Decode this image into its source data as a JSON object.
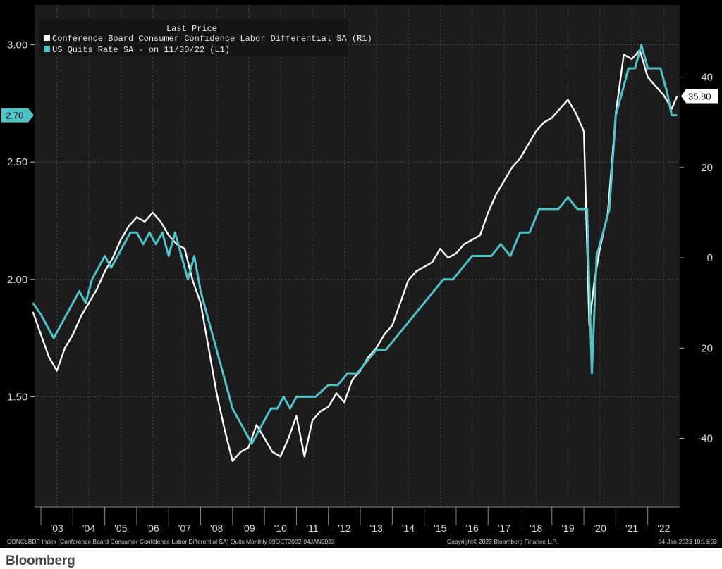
{
  "brand": "Bloomberg",
  "footer": {
    "left": "CONCLBDF Index (Conference Board Consumer Confidence Labor Differential SA) Quits  Monthly 09OCT2002-04JAN2023",
    "center": "Copyright© 2023 Bloomberg Finance L.P.",
    "right": "04-Jan-2023 10:16:03"
  },
  "colors": {
    "background": "#000000",
    "plot_area": "#1c1c1c",
    "conference_board": "#ffffff",
    "quits": "#4fc3c8"
  },
  "chart_data": {
    "type": "line",
    "legend": {
      "title": "Last Price",
      "entries": [
        "Conference Board Consumer Confidence Labor Differential SA  (R1)",
        "US Quits Rate SA -  on 11/30/22  (L1)"
      ],
      "placement": "top-left"
    },
    "x_tick_labels": [
      "'03",
      "'04",
      "'05",
      "'06",
      "'07",
      "'08",
      "'09",
      "'10",
      "'11",
      "'12",
      "'13",
      "'14",
      "'15",
      "'16",
      "'17",
      "'18",
      "'19",
      "'20",
      "'21",
      "'22"
    ],
    "x_range": [
      2002.8,
      2023.0
    ],
    "left_axis": {
      "ticks": [
        1.5,
        2.0,
        2.5,
        3.0
      ],
      "tick_labels": [
        "1.50",
        "2.00",
        "2.50",
        "3.00"
      ],
      "range": [
        1.03,
        3.17
      ]
    },
    "right_axis": {
      "ticks": [
        -40,
        -20,
        0,
        20,
        40
      ],
      "tick_labels": [
        "-40",
        "-20",
        "0",
        "20",
        "40"
      ],
      "range": [
        -55.2,
        56.0
      ]
    },
    "last_value_tags": [
      {
        "series": "quits",
        "text": "2.70",
        "value": 2.7
      },
      {
        "series": "conference_board",
        "text": "35.80",
        "value": 35.8
      }
    ],
    "series": [
      {
        "name": "Conference Board Consumer Confidence Labor Differential SA",
        "axis": "right",
        "x": [
          2002.75,
          2003.0,
          2003.25,
          2003.5,
          2003.75,
          2004.0,
          2004.25,
          2004.5,
          2004.75,
          2005.0,
          2005.25,
          2005.5,
          2005.75,
          2006.0,
          2006.25,
          2006.5,
          2006.75,
          2007.0,
          2007.25,
          2007.5,
          2007.75,
          2008.0,
          2008.25,
          2008.5,
          2008.75,
          2009.0,
          2009.25,
          2009.5,
          2009.75,
          2010.0,
          2010.25,
          2010.5,
          2010.75,
          2011.0,
          2011.25,
          2011.5,
          2011.75,
          2012.0,
          2012.25,
          2012.5,
          2012.75,
          2013.0,
          2013.25,
          2013.5,
          2013.75,
          2014.0,
          2014.25,
          2014.5,
          2014.75,
          2015.0,
          2015.25,
          2015.5,
          2015.75,
          2016.0,
          2016.25,
          2016.5,
          2016.75,
          2017.0,
          2017.25,
          2017.5,
          2017.75,
          2018.0,
          2018.25,
          2018.5,
          2018.75,
          2019.0,
          2019.25,
          2019.5,
          2019.75,
          2020.0,
          2020.17,
          2020.25,
          2020.33,
          2020.5,
          2020.75,
          2021.0,
          2021.25,
          2021.5,
          2021.75,
          2022.0,
          2022.25,
          2022.5,
          2022.75,
          2022.92
        ],
        "values": [
          -12,
          -17,
          -22,
          -25,
          -20,
          -17,
          -13,
          -10,
          -7,
          -3,
          0,
          4,
          7,
          9,
          8,
          10,
          8,
          5,
          3,
          2,
          -5,
          -10,
          -20,
          -30,
          -38,
          -45,
          -43,
          -42,
          -37,
          -40,
          -43,
          -44,
          -40,
          -35,
          -44,
          -36,
          -34,
          -33,
          -30,
          -32,
          -27,
          -25,
          -22,
          -20,
          -17,
          -15,
          -10,
          -5,
          -3,
          -2,
          -1,
          2,
          0,
          1,
          3,
          4,
          5,
          10,
          14,
          17,
          20,
          22,
          25,
          28,
          30,
          31,
          33,
          35,
          32,
          28,
          -15,
          -10,
          -5,
          2,
          10,
          32,
          45,
          44,
          46,
          40,
          38,
          36,
          33,
          35.8
        ]
      },
      {
        "name": "US Quits Rate SA",
        "axis": "left",
        "x": [
          2002.75,
          2003.0,
          2003.2,
          2003.4,
          2003.6,
          2003.8,
          2004.0,
          2004.2,
          2004.4,
          2004.6,
          2004.8,
          2005.0,
          2005.2,
          2005.4,
          2005.6,
          2005.8,
          2006.0,
          2006.2,
          2006.4,
          2006.6,
          2006.8,
          2007.0,
          2007.2,
          2007.4,
          2007.6,
          2007.8,
          2008.0,
          2008.2,
          2008.4,
          2008.6,
          2008.8,
          2009.0,
          2009.2,
          2009.4,
          2009.6,
          2009.8,
          2010.0,
          2010.2,
          2010.4,
          2010.6,
          2010.8,
          2011.0,
          2011.3,
          2011.6,
          2012.0,
          2012.3,
          2012.6,
          2012.9,
          2013.2,
          2013.5,
          2013.8,
          2014.1,
          2014.4,
          2014.7,
          2015.0,
          2015.3,
          2015.6,
          2015.9,
          2016.2,
          2016.5,
          2016.8,
          2017.1,
          2017.4,
          2017.7,
          2018.0,
          2018.3,
          2018.6,
          2018.9,
          2019.2,
          2019.5,
          2019.8,
          2019.95,
          2020.1,
          2020.25,
          2020.4,
          2020.6,
          2020.8,
          2021.0,
          2021.2,
          2021.4,
          2021.6,
          2021.8,
          2022.0,
          2022.2,
          2022.4,
          2022.6,
          2022.75,
          2022.92
        ],
        "values": [
          1.9,
          1.85,
          1.8,
          1.75,
          1.8,
          1.85,
          1.9,
          1.95,
          1.9,
          2.0,
          2.05,
          2.1,
          2.05,
          2.1,
          2.15,
          2.2,
          2.2,
          2.15,
          2.2,
          2.15,
          2.2,
          2.1,
          2.2,
          2.1,
          2.0,
          2.1,
          1.95,
          1.85,
          1.75,
          1.65,
          1.55,
          1.45,
          1.4,
          1.35,
          1.3,
          1.35,
          1.4,
          1.45,
          1.45,
          1.5,
          1.45,
          1.5,
          1.5,
          1.5,
          1.55,
          1.55,
          1.6,
          1.6,
          1.65,
          1.7,
          1.7,
          1.75,
          1.8,
          1.85,
          1.9,
          1.95,
          2.0,
          2.0,
          2.05,
          2.1,
          2.1,
          2.1,
          2.15,
          2.1,
          2.2,
          2.2,
          2.3,
          2.3,
          2.3,
          2.35,
          2.3,
          2.3,
          2.3,
          1.6,
          2.1,
          2.2,
          2.3,
          2.7,
          2.8,
          2.9,
          2.9,
          3.0,
          2.9,
          2.9,
          2.9,
          2.8,
          2.7,
          2.7
        ]
      }
    ]
  }
}
